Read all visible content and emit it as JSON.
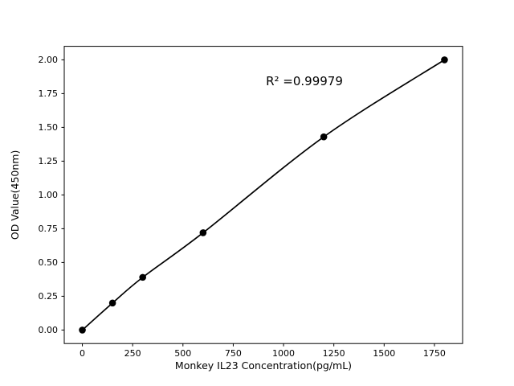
{
  "chart_data": {
    "type": "scatter",
    "title": "",
    "xlabel": "Monkey IL23 Concentration(pg/mL)",
    "ylabel": "OD Value(450nm)",
    "annotation": "R² =0.99979",
    "x": [
      0,
      150,
      300,
      600,
      1200,
      1800
    ],
    "y": [
      0.0,
      0.2,
      0.39,
      0.72,
      1.43,
      2.0
    ],
    "xticks": [
      "0",
      "250",
      "500",
      "750",
      "1000",
      "1250",
      "1500",
      "1750"
    ],
    "yticks": [
      "0.00",
      "0.25",
      "0.50",
      "0.75",
      "1.00",
      "1.25",
      "1.50",
      "1.75",
      "2.00"
    ],
    "xlim": [
      -90,
      1890
    ],
    "ylim": [
      -0.1,
      2.1
    ],
    "grid": false,
    "legend": null,
    "line_color": "#000000",
    "marker_color": "#000000",
    "axis_color": "#000000",
    "background_color": "#ffffff"
  }
}
